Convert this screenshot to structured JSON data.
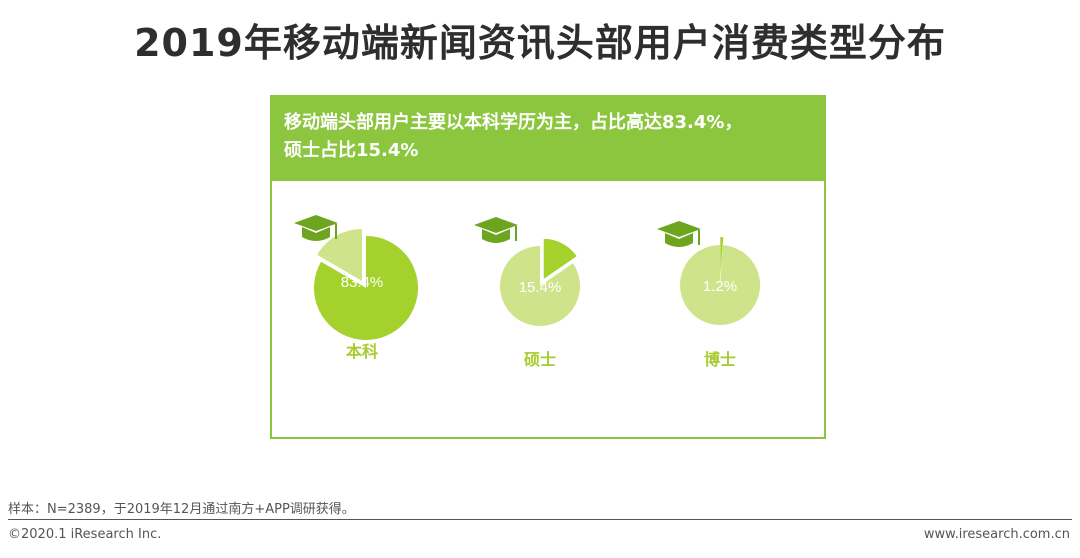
{
  "title": "2019年移动端新闻资讯头部用户消费类型分布",
  "panel": {
    "header_line1": "移动端头部用户主要以本科学历为主，占比高达83.4%，",
    "header_line2": "硕士占比15.4%"
  },
  "colors": {
    "accent": "#8cc63f",
    "slice": "#a4d12c",
    "pie_base": "#cfe48a",
    "label_text": "#a7cc2e",
    "icon": "#6da51f"
  },
  "chart_data": {
    "type": "pie",
    "categories": [
      "本科",
      "硕士",
      "博士"
    ],
    "values": [
      83.4,
      15.4,
      1.2
    ],
    "value_labels": [
      "83.4%",
      "15.4%",
      "1.2%"
    ],
    "icons": [
      "graduation-cap-icon",
      "graduation-cap-icon",
      "graduation-cap-icon"
    ]
  },
  "footer": {
    "note": "样本：N=2389，于2019年12月通过南方+APP调研获得。",
    "copyright": "©2020.1 iResearch Inc.",
    "url": "www.iresearch.com.cn"
  }
}
